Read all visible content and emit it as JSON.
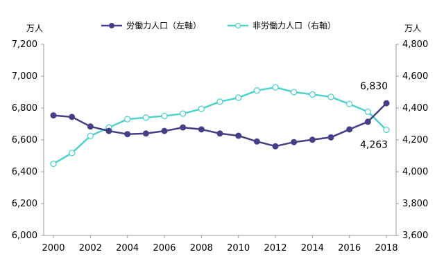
{
  "chart_data": {
    "type": "line",
    "x": [
      2000,
      2001,
      2002,
      2003,
      2004,
      2005,
      2006,
      2007,
      2008,
      2009,
      2010,
      2011,
      2012,
      2013,
      2014,
      2015,
      2016,
      2017,
      2018
    ],
    "series": [
      {
        "name": "労働力人口（左軸）",
        "axis": "left",
        "color": "#453f86",
        "values": [
          6754,
          6744,
          6684,
          6656,
          6636,
          6640,
          6656,
          6678,
          6666,
          6640,
          6626,
          6590,
          6560,
          6586,
          6601,
          6616,
          6666,
          6714,
          6830
        ]
      },
      {
        "name": "非労働力人口（右軸）",
        "axis": "right",
        "color": "#4fd1cc",
        "values": [
          4050,
          4118,
          4225,
          4278,
          4330,
          4340,
          4350,
          4365,
          4395,
          4440,
          4465,
          4510,
          4530,
          4500,
          4485,
          4470,
          4425,
          4377,
          4263
        ]
      }
    ],
    "left_axis": {
      "unit_label": "万人",
      "ylim": [
        6000,
        7200
      ],
      "ticks": [
        6000,
        6200,
        6400,
        6600,
        6800,
        7000,
        7200
      ],
      "tick_labels": [
        "6,000",
        "6,200",
        "6,400",
        "6,600",
        "6,800",
        "7,000",
        "7,200"
      ]
    },
    "right_axis": {
      "unit_label": "万人",
      "ylim": [
        3600,
        4800
      ],
      "ticks": [
        3600,
        3800,
        4000,
        4200,
        4400,
        4600,
        4800
      ],
      "tick_labels": [
        "3,600",
        "3,800",
        "4,000",
        "4,200",
        "4,400",
        "4,600",
        "4,800"
      ]
    },
    "x_ticks": [
      2000,
      2002,
      2004,
      2006,
      2008,
      2010,
      2012,
      2014,
      2016,
      2018
    ],
    "x_tick_labels": [
      "2000",
      "2002",
      "2004",
      "2006",
      "2008",
      "2010",
      "2012",
      "2014",
      "2016",
      "2018"
    ],
    "annotations": [
      {
        "series": 0,
        "x": 2018,
        "text": "6,830"
      },
      {
        "series": 1,
        "x": 2018,
        "text": "4,263"
      }
    ],
    "legend": {
      "position": "top-center"
    },
    "grid": false
  }
}
